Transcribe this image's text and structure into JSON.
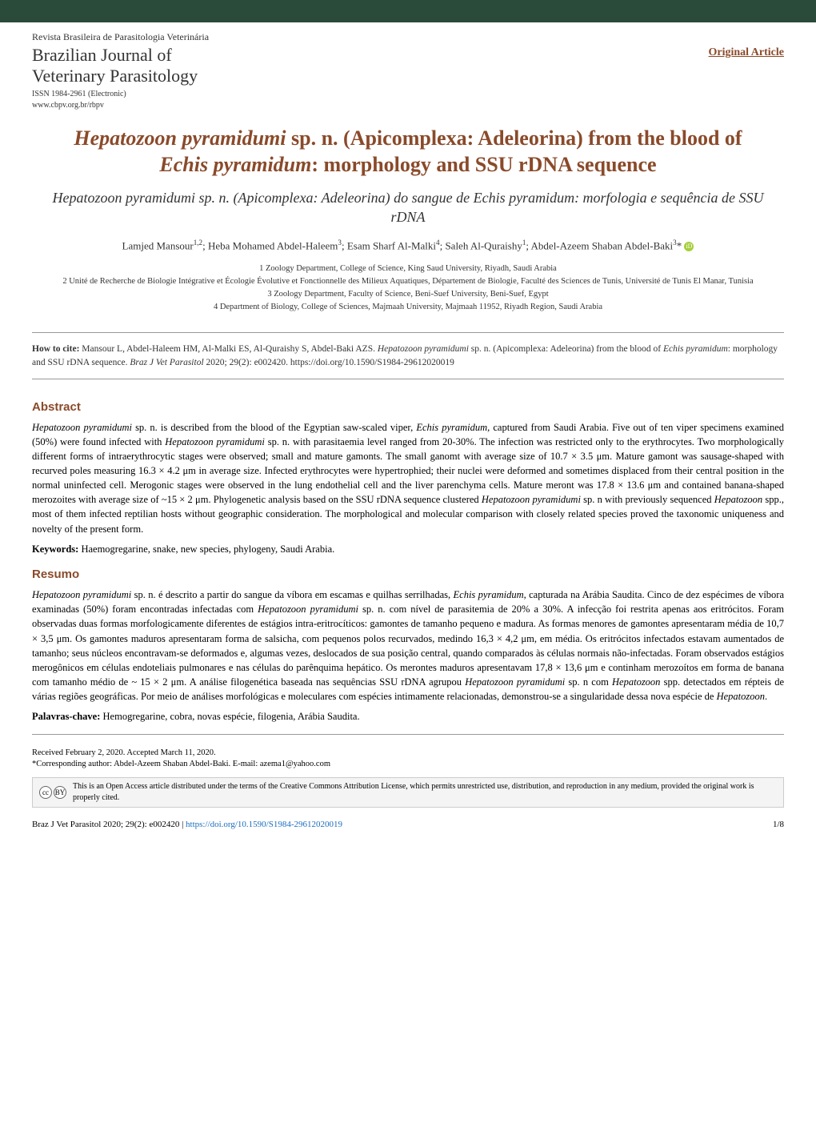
{
  "colors": {
    "header_band": "#2a4a3a",
    "accent": "#8a4a2a",
    "text": "#000000",
    "muted": "#333333",
    "link": "#1a6ebf",
    "license_bg": "#f4f4f4",
    "license_border": "#cccccc",
    "orcid_bg": "#a6ce39"
  },
  "journal": {
    "name_pt": "Revista Brasileira de Parasitologia Veterinária",
    "name_en_line1": "Brazilian Journal of",
    "name_en_line2": "Veterinary Parasitology",
    "issn": "ISSN 1984-2961 (Electronic)",
    "url": "www.cbpv.org.br/rbpv",
    "article_type": "Original Article"
  },
  "title": {
    "en_html": "<em>Hepatozoon pyramidumi</em> sp. n. (Apicomplexa: Adeleorina) from the blood of <em>Echis pyramidum</em>: morphology and SSU rDNA sequence",
    "pt_html": "<em>Hepatozoon pyramidumi</em> sp. n. (Apicomplexa: Adeleorina) do sangue de <em>Echis pyramidum</em>: morfologia e sequência de SSU rDNA"
  },
  "authors_html": "Lamjed Mansour<sup>1,2</sup>; Heba Mohamed Abdel-Haleem<sup>3</sup>; Esam Sharf Al-Malki<sup>4</sup>; Saleh Al-Quraishy<sup>1</sup>; Abdel-Azeem Shaban Abdel-Baki<sup>3</sup>* <span class=\"orcid\" data-name=\"orcid-icon\" data-interactable=\"false\">iD</span>",
  "affiliations": [
    "1 Zoology Department, College of Science, King Saud University, Riyadh, Saudi Arabia",
    "2 Unité de Recherche de Biologie Intégrative et Écologie Évolutive et Fonctionnelle des Milieux Aquatiques, Département de Biologie, Faculté des Sciences de Tunis, Université de Tunis El Manar, Tunisia",
    "3 Zoology Department, Faculty of Science, Beni-Suef University, Beni-Suef, Egypt",
    "4 Department of Biology, College of Sciences, Majmaah University, Majmaah 11952, Riyadh Region, Saudi Arabia"
  ],
  "howto": {
    "label": "How to cite:",
    "text_html": "Mansour L, Abdel-Haleem HM, Al-Malki ES, Al-Quraishy S, Abdel-Baki AZS. <em>Hepatozoon pyramidumi</em> sp. n. (Apicomplexa: Adeleorina) from the blood of <em>Echis pyramidum</em>: morphology and SSU rDNA sequence. <em>Braz J Vet Parasitol</em> 2020; 29(2): e002420. https://doi.org/10.1590/S1984-29612020019"
  },
  "abstract": {
    "heading": "Abstract",
    "body_html": "<em>Hepatozoon pyramidumi</em> sp. n. is described from the blood of the Egyptian saw-scaled viper, <em>Echis pyramidum</em>, captured from Saudi Arabia. Five out of ten viper specimens examined (50%) were found infected with <em>Hepatozoon pyramidumi</em> sp. n. with parasitaemia level ranged from 20-30%. The infection was restricted only to the erythrocytes. Two morphologically different forms of intraerythrocytic stages were observed; small and mature gamonts. The small ganomt with average size of 10.7 × 3.5 μm. Mature gamont was sausage-shaped with recurved poles measuring 16.3 × 4.2 μm in average size. Infected erythrocytes were hypertrophied; their nuclei were deformed and sometimes displaced from their central position in the normal uninfected cell. Merogonic stages were observed in the lung endothelial cell and the liver parenchyma cells. Mature meront was 17.8 × 13.6 μm and contained banana-shaped merozoites with average size of ~15 × 2 μm. Phylogenetic analysis based on the SSU rDNA sequence clustered <em>Hepatozoon pyramidumi</em> sp. n with previously sequenced <em>Hepatozoon</em> spp., most of them infected reptilian hosts without geographic consideration. The morphological and molecular comparison with closely related species proved the taxonomic uniqueness and novelty of the present form.",
    "keywords_label": "Keywords:",
    "keywords": "Haemogregarine, snake, new species, phylogeny, Saudi Arabia."
  },
  "resumo": {
    "heading": "Resumo",
    "body_html": "<em>Hepatozoon pyramidumi</em> sp. n. é descrito a partir do sangue da víbora em escamas e quilhas serrilhadas, <em>Echis pyramidum</em>, capturada na Arábia Saudita. Cinco de dez espécimes de víbora examinadas (50%) foram encontradas infectadas com <em>Hepatozoon pyramidumi</em> sp. n. com nível de parasitemia de 20% a 30%. A infecção foi restrita apenas aos eritrócitos. Foram observadas duas formas morfologicamente diferentes de estágios intra-eritrocíticos: gamontes de tamanho pequeno e madura. As formas menores de gamontes apresentaram média de 10,7 × 3,5 μm. Os gamontes maduros apresentaram forma de salsicha, com pequenos polos recurvados, medindo 16,3 × 4,2 μm, em média. Os eritrócitos infectados estavam aumentados de tamanho; seus núcleos encontravam-se deformados e, algumas vezes, deslocados de sua posição central, quando comparados às células normais não-infectadas. Foram observados estágios merogônicos em células endoteliais pulmonares e nas células do parênquima hepático. Os merontes maduros apresentavam 17,8 × 13,6 μm e continham merozoítos em forma de banana com tamanho médio de ~ 15 × 2 μm. A análise filogenética baseada nas sequências SSU rDNA agrupou <em>Hepatozoon pyramidumi</em> sp. n com <em>Hepatozoon</em> spp. detectados em répteis de várias regiões geográficas. Por meio de análises morfológicas e moleculares com espécies intimamente relacionadas, demonstrou-se a singularidade dessa nova espécie de <em>Hepatozoon</em>.",
    "keywords_label": "Palavras-chave:",
    "keywords": "Hemogregarine, cobra, novas espécie, filogenia, Arábia Saudita."
  },
  "received": {
    "dates": "Received February 2, 2020. Accepted March 11, 2020.",
    "corresponding": "*Corresponding author: Abdel-Azeem Shaban Abdel-Baki. E-mail: azema1@yahoo.com"
  },
  "license": {
    "cc_label": "cc",
    "by_label": "BY",
    "text": "This is an Open Access article distributed under the terms of the Creative Commons Attribution License, which permits unrestricted use, distribution, and reproduction in any medium, provided the original work is properly cited."
  },
  "footer": {
    "left": "Braz J Vet Parasitol 2020; 29(2): e002420 | ",
    "doi": "https://doi.org/10.1590/S1984-29612020019",
    "page": "1/8"
  }
}
